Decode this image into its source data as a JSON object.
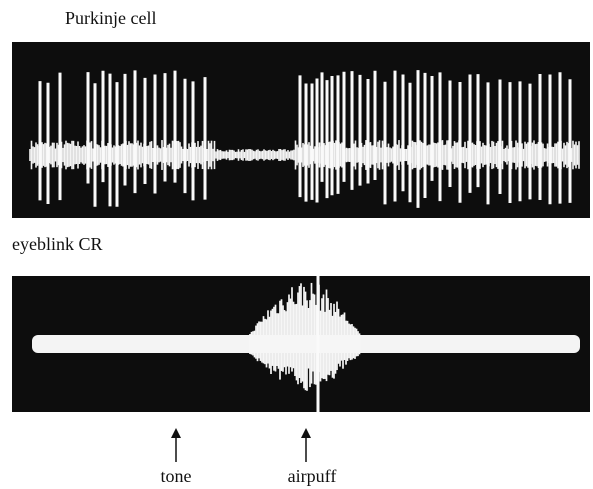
{
  "figure": {
    "trace_labels": [
      "Purkinje cell",
      "eyeblink CR"
    ],
    "event_labels": [
      "tone",
      "airpuff"
    ]
  }
}
